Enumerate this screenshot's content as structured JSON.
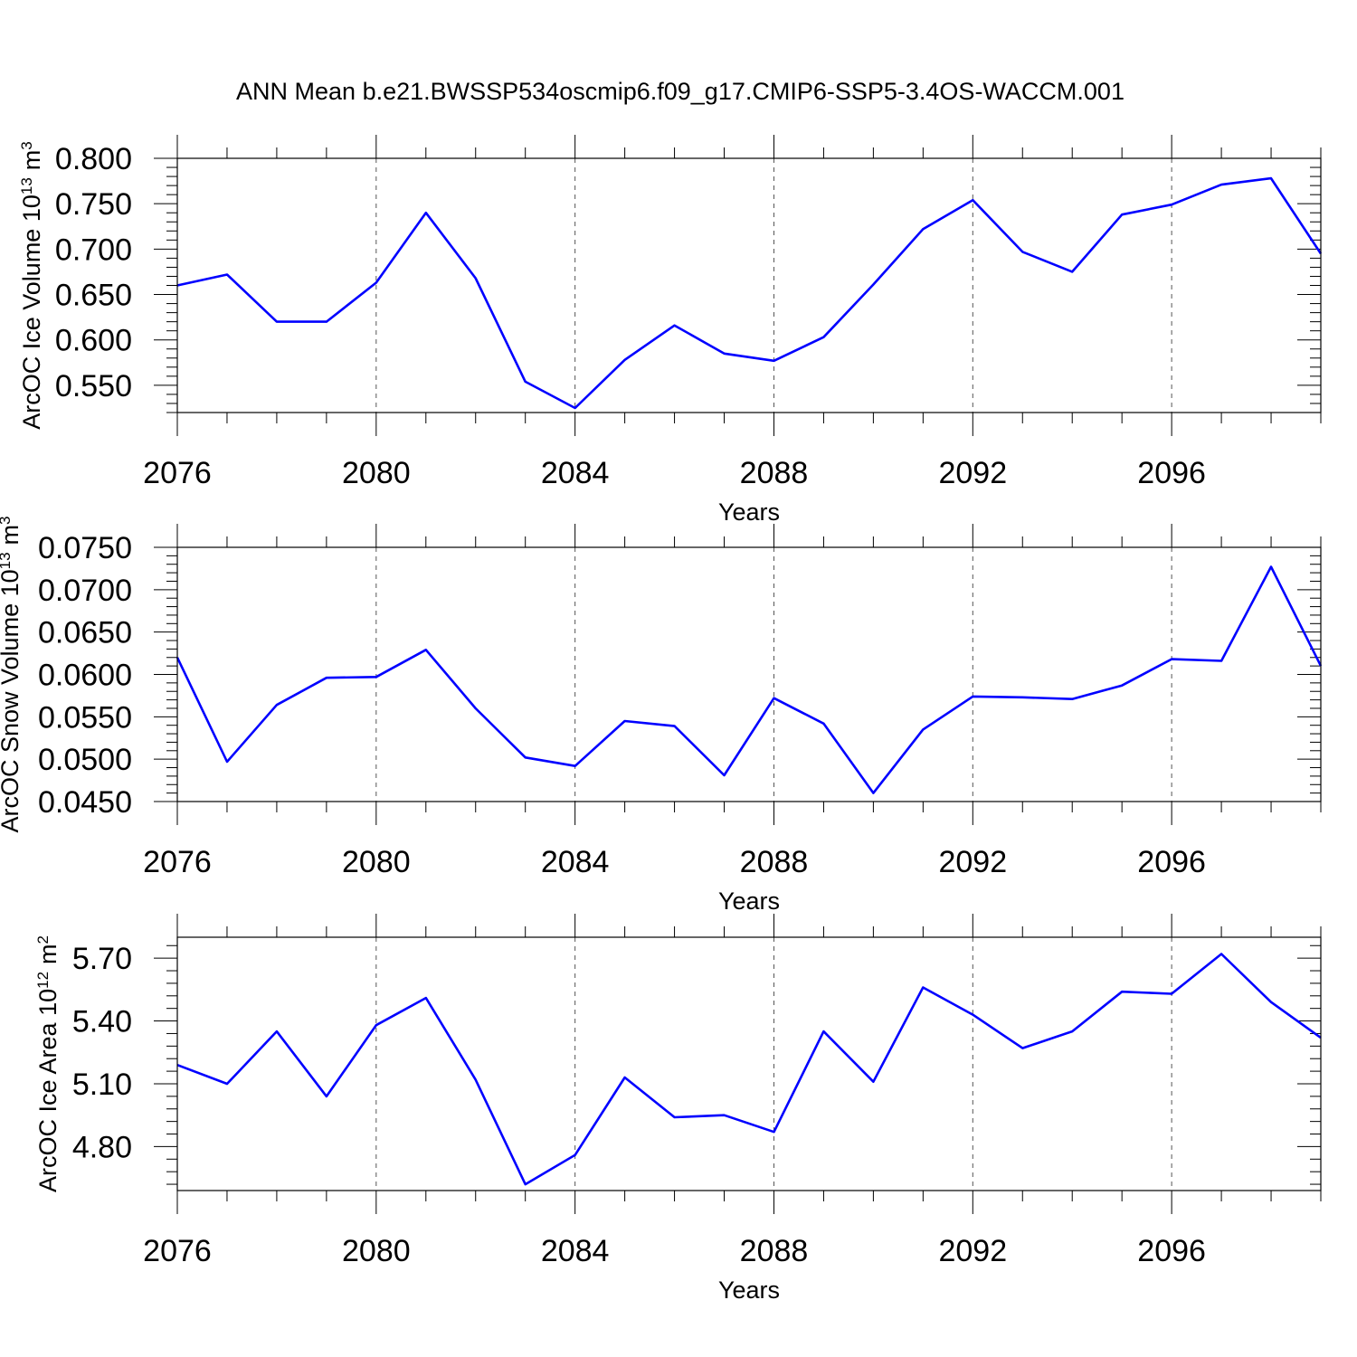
{
  "title": "ANN Mean b.e21.BWSSP534oscmip6.f09_g17.CMIP6-SSP5-3.4OS-WACCM.001",
  "colors": {
    "line": "#0000ff",
    "axis": "#000000",
    "grid": "#555555"
  },
  "chart_data": [
    {
      "type": "line",
      "ylabel_main": "ArcOC Ice Volume 10",
      "ylabel_exp": "13",
      "ylabel_unit": "m",
      "ylabel_unit_exp": "3",
      "xlabel": "Years",
      "x": [
        2076,
        2077,
        2078,
        2079,
        2080,
        2081,
        2082,
        2083,
        2084,
        2085,
        2086,
        2087,
        2088,
        2089,
        2090,
        2091,
        2092,
        2093,
        2094,
        2095,
        2096,
        2097,
        2098,
        2099
      ],
      "values": [
        0.66,
        0.672,
        0.62,
        0.62,
        0.663,
        0.74,
        0.668,
        0.554,
        0.525,
        0.578,
        0.616,
        0.585,
        0.577,
        0.603,
        0.661,
        0.722,
        0.754,
        0.697,
        0.675,
        0.738,
        0.749,
        0.771,
        0.778,
        0.695
      ],
      "xlim": [
        2076,
        2099
      ],
      "ylim": [
        0.52,
        0.8
      ],
      "xticks": [
        "2076",
        "2080",
        "2084",
        "2088",
        "2092",
        "2096"
      ],
      "xtick_values": [
        2076,
        2080,
        2084,
        2088,
        2092,
        2096
      ],
      "yticks": [
        "0.550",
        "0.600",
        "0.650",
        "0.700",
        "0.750",
        "0.800"
      ],
      "ytick_values": [
        0.55,
        0.6,
        0.65,
        0.7,
        0.75,
        0.8
      ],
      "grid": "vertical dashed at labeled x ticks"
    },
    {
      "type": "line",
      "ylabel_main": "ArcOC Snow Volume 10",
      "ylabel_exp": "13",
      "ylabel_unit": "m",
      "ylabel_unit_exp": "3",
      "xlabel": "Years",
      "x": [
        2076,
        2077,
        2078,
        2079,
        2080,
        2081,
        2082,
        2083,
        2084,
        2085,
        2086,
        2087,
        2088,
        2089,
        2090,
        2091,
        2092,
        2093,
        2094,
        2095,
        2096,
        2097,
        2098,
        2099
      ],
      "values": [
        0.062,
        0.0497,
        0.0564,
        0.0596,
        0.0597,
        0.0629,
        0.056,
        0.0502,
        0.0492,
        0.0545,
        0.0539,
        0.0481,
        0.0572,
        0.0542,
        0.046,
        0.0535,
        0.0574,
        0.0573,
        0.0571,
        0.0587,
        0.0618,
        0.0616,
        0.0727,
        0.061
      ],
      "xlim": [
        2076,
        2099
      ],
      "ylim": [
        0.045,
        0.075
      ],
      "xticks": [
        "2076",
        "2080",
        "2084",
        "2088",
        "2092",
        "2096"
      ],
      "xtick_values": [
        2076,
        2080,
        2084,
        2088,
        2092,
        2096
      ],
      "yticks": [
        "0.0450",
        "0.0500",
        "0.0550",
        "0.0600",
        "0.0650",
        "0.0700",
        "0.0750"
      ],
      "ytick_values": [
        0.045,
        0.05,
        0.055,
        0.06,
        0.065,
        0.07,
        0.075
      ],
      "grid": "vertical dashed at labeled x ticks"
    },
    {
      "type": "line",
      "ylabel_main": "ArcOC Ice Area 10",
      "ylabel_exp": "12",
      "ylabel_unit": "m",
      "ylabel_unit_exp": "2",
      "xlabel": "Years",
      "x": [
        2076,
        2077,
        2078,
        2079,
        2080,
        2081,
        2082,
        2083,
        2084,
        2085,
        2086,
        2087,
        2088,
        2089,
        2090,
        2091,
        2092,
        2093,
        2094,
        2095,
        2096,
        2097,
        2098,
        2099
      ],
      "values": [
        5.19,
        5.1,
        5.35,
        5.04,
        5.38,
        5.51,
        5.12,
        4.62,
        4.76,
        5.13,
        4.94,
        4.95,
        4.87,
        5.35,
        5.11,
        5.56,
        5.43,
        5.27,
        5.35,
        5.54,
        5.53,
        5.72,
        5.49,
        5.32
      ],
      "xlim": [
        2076,
        2099
      ],
      "ylim": [
        4.59,
        5.8
      ],
      "xticks": [
        "2076",
        "2080",
        "2084",
        "2088",
        "2092",
        "2096"
      ],
      "xtick_values": [
        2076,
        2080,
        2084,
        2088,
        2092,
        2096
      ],
      "yticks": [
        "4.80",
        "5.10",
        "5.40",
        "5.70"
      ],
      "ytick_values": [
        4.8,
        5.1,
        5.4,
        5.7
      ],
      "grid": "vertical dashed at labeled x ticks"
    }
  ]
}
